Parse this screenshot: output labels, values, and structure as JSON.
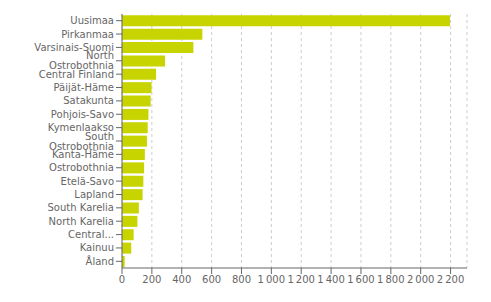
{
  "chart_data": {
    "type": "bar",
    "orientation": "horizontal",
    "categories": [
      "Åland",
      "Kainuu",
      "Central...",
      "North Karelia",
      "South Karelia",
      "Lapland",
      "Etelä-Savo",
      "Ostrobothnia",
      "Kanta-Häme",
      "South Ostrobothnia",
      "Kymenlaakso",
      "Pohjois-Savo",
      "Satakunta",
      "Päijät-Häme",
      "Central Finland",
      "North Ostrobothnia",
      "Varsinais-Suomi",
      "Pirkanmaa",
      "Uusimaa"
    ],
    "values": [
      18,
      62,
      78,
      103,
      113,
      138,
      143,
      148,
      153,
      167,
      172,
      177,
      192,
      198,
      228,
      288,
      478,
      538,
      2196
    ],
    "color": "#c8d400",
    "xlim": [
      0,
      2310
    ],
    "xticks": [
      0,
      200,
      400,
      600,
      800,
      {
        "value": 1000,
        "label": "1 000"
      },
      {
        "value": 1200,
        "label": "1 200"
      },
      {
        "value": 1400,
        "label": "1 400"
      },
      {
        "value": 1600,
        "label": "1 600"
      },
      {
        "value": 1800,
        "label": "1 800"
      },
      {
        "value": 2000,
        "label": "2 000"
      },
      {
        "value": 2200,
        "label": "2 200"
      }
    ],
    "grid": true
  }
}
